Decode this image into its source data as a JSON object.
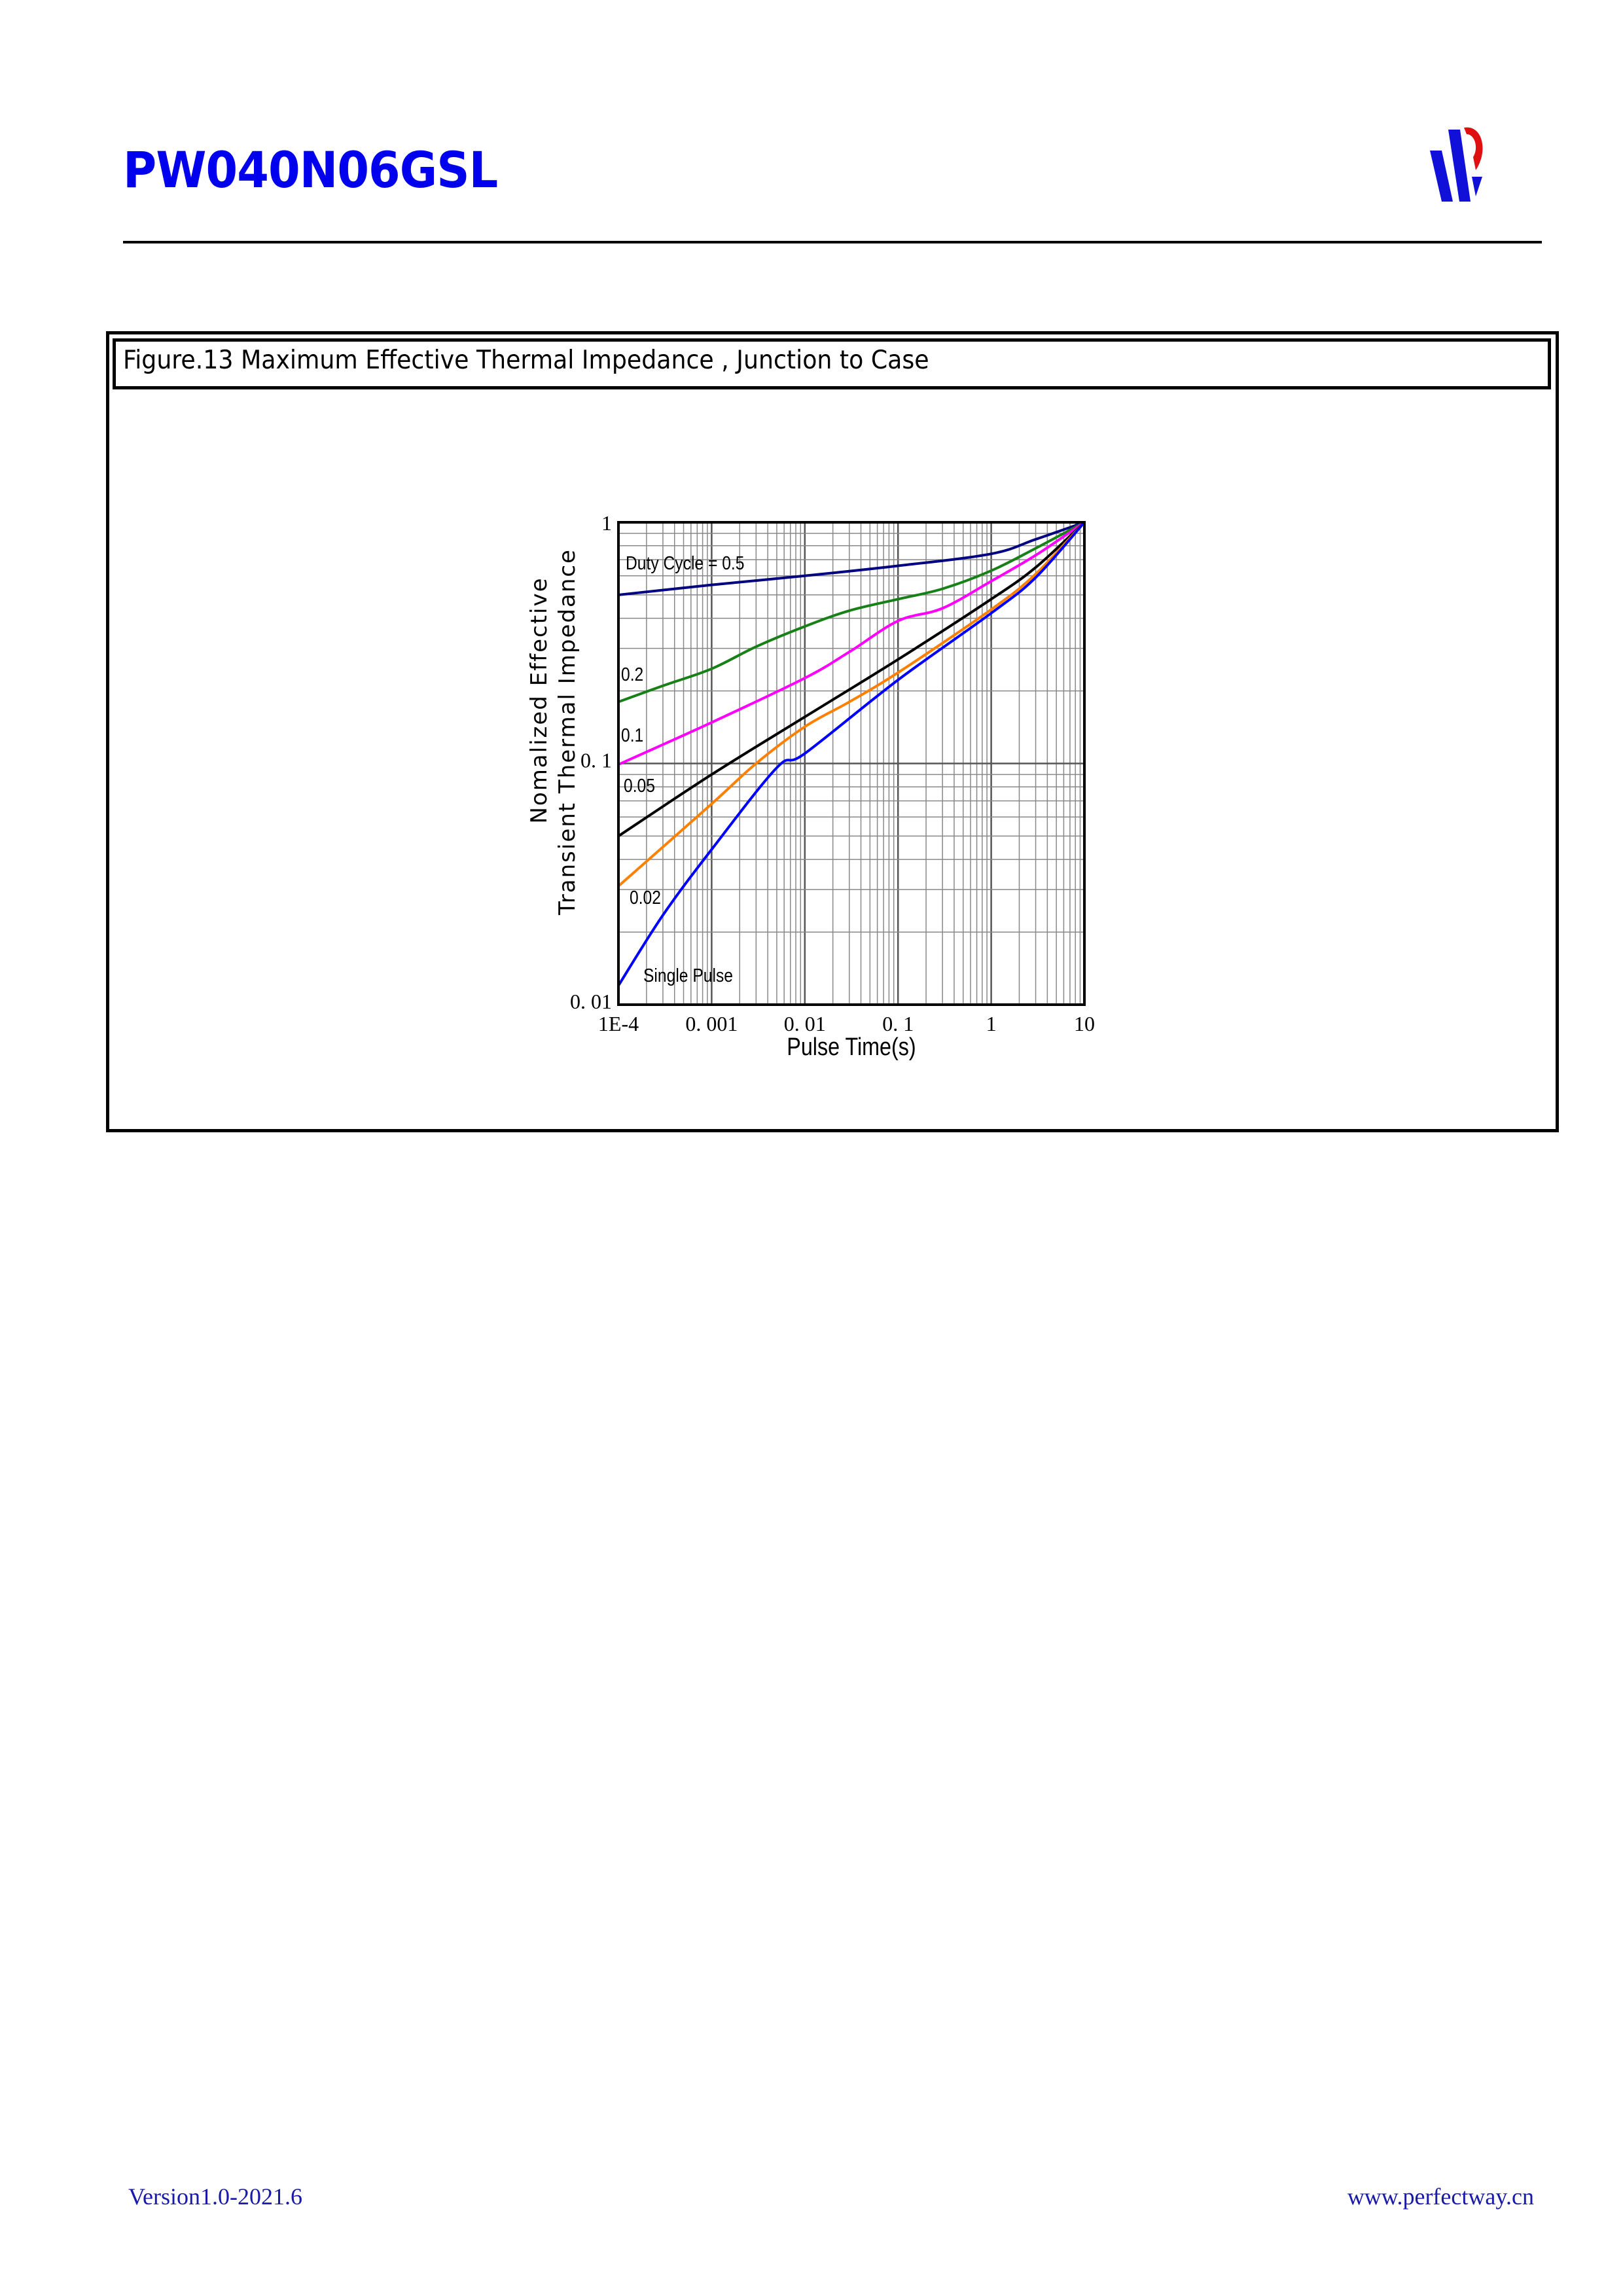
{
  "header": {
    "title": "PW040N06GSL",
    "logo_colors": {
      "blue": "#1010d8",
      "red": "#e01010"
    }
  },
  "figure": {
    "caption": "Figure.13 Maximum Effective Thermal Impedance , Junction to Case"
  },
  "chart_data": {
    "type": "line",
    "title": "",
    "xlabel": "Pulse Time(s)",
    "ylabel_lines": [
      "Nomalized Effective",
      "Transient Thermal Impedance"
    ],
    "xscale": "log",
    "yscale": "log",
    "xlim": [
      0.0001,
      10
    ],
    "ylim": [
      0.01,
      1
    ],
    "xticks": [
      0.0001,
      0.001,
      0.01,
      0.1,
      1,
      10
    ],
    "xtick_labels": [
      "1E-4",
      "0. 001",
      "0. 01",
      "0. 1",
      "1",
      "10"
    ],
    "yticks": [
      0.01,
      0.1,
      1
    ],
    "ytick_labels": [
      "0. 01",
      "0. 1",
      "1"
    ],
    "grid": true,
    "series": [
      {
        "name": "Duty Cycle = 0.5",
        "color": "#000080",
        "x": [
          0.0001,
          0.001,
          0.01,
          0.1,
          1,
          3,
          10
        ],
        "y": [
          0.5,
          0.55,
          0.6,
          0.66,
          0.74,
          0.85,
          1.0
        ]
      },
      {
        "name": "0.2",
        "color": "#178017",
        "x": [
          0.0001,
          0.0003,
          0.001,
          0.003,
          0.01,
          0.03,
          0.1,
          0.3,
          1,
          3,
          10
        ],
        "y": [
          0.18,
          0.21,
          0.247,
          0.305,
          0.37,
          0.43,
          0.48,
          0.53,
          0.63,
          0.78,
          1.0
        ]
      },
      {
        "name": "0.1",
        "color": "#ff00ff",
        "x": [
          0.0001,
          0.001,
          0.01,
          0.03,
          0.1,
          0.3,
          1,
          3,
          10
        ],
        "y": [
          0.099,
          0.148,
          0.226,
          0.29,
          0.39,
          0.44,
          0.57,
          0.73,
          1.0
        ]
      },
      {
        "name": "0.05",
        "color": "#000000",
        "x": [
          0.0001,
          0.001,
          0.01,
          0.1,
          1,
          3,
          10
        ],
        "y": [
          0.05,
          0.09,
          0.156,
          0.27,
          0.48,
          0.65,
          1.0
        ]
      },
      {
        "name": "0.02",
        "color": "#ff8000",
        "x": [
          0.0001,
          0.001,
          0.003,
          0.01,
          0.03,
          0.1,
          1,
          3,
          10
        ],
        "y": [
          0.031,
          0.068,
          0.1,
          0.142,
          0.18,
          0.238,
          0.435,
          0.61,
          1.0
        ]
      },
      {
        "name": "Single Pulse",
        "color": "#0000ff",
        "x": [
          0.0001,
          0.0003,
          0.001,
          0.005,
          0.01,
          0.1,
          1,
          3,
          10
        ],
        "y": [
          0.012,
          0.0235,
          0.044,
          0.096,
          0.11,
          0.222,
          0.42,
          0.59,
          1.0
        ]
      }
    ]
  },
  "footer": {
    "version": "Version1.0-2021.6",
    "url": "www.perfectway.cn"
  }
}
